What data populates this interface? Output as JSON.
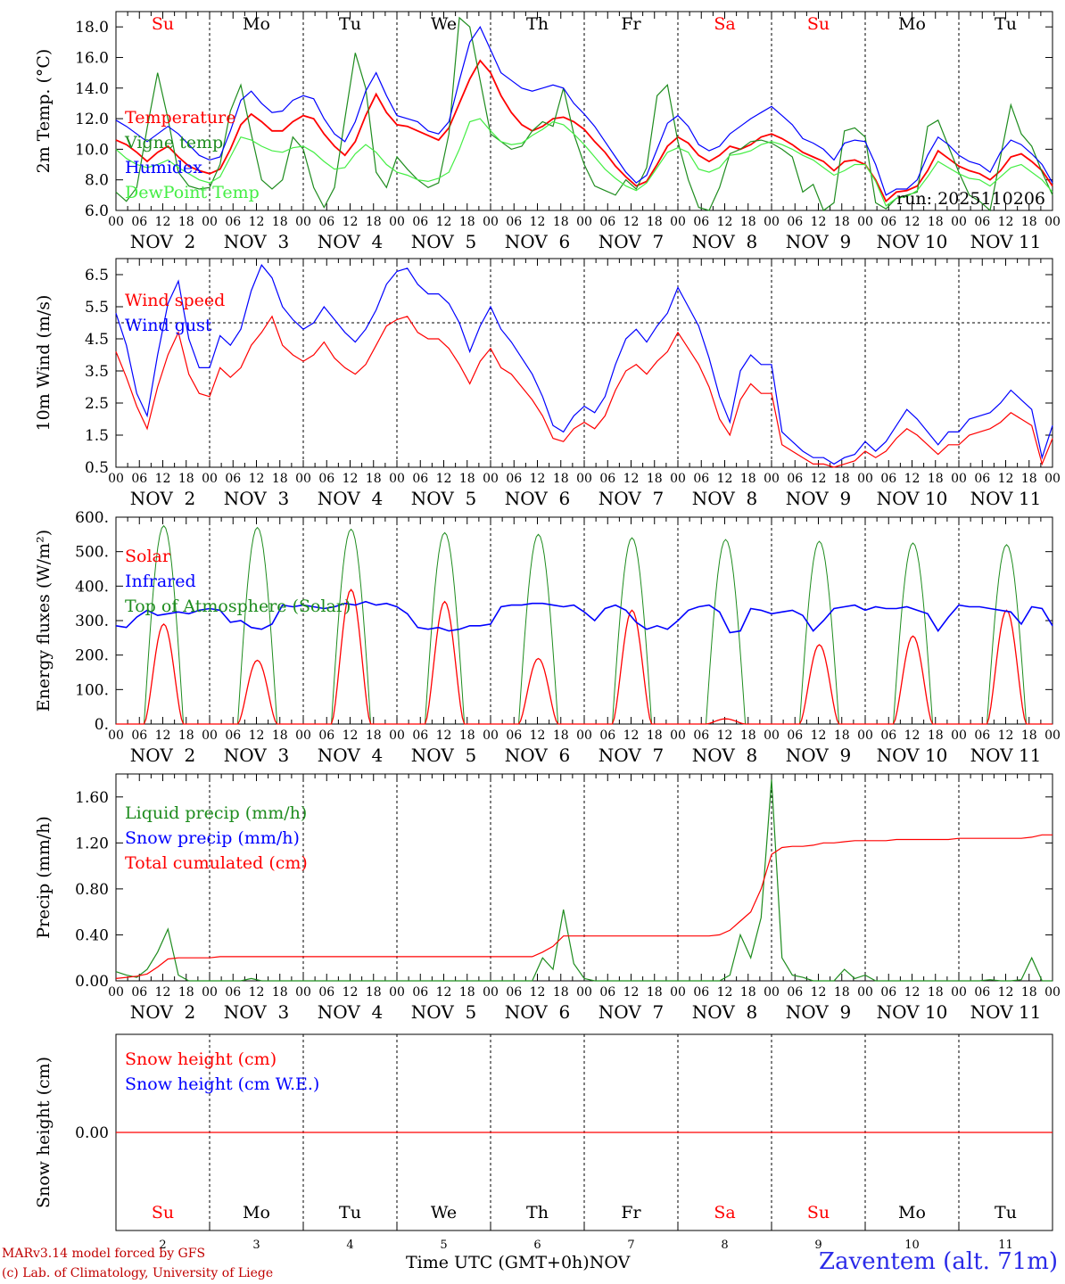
{
  "chart_data": [
    {
      "type": "line",
      "ylabel": "2m Temp. (°C)",
      "ylim": [
        6,
        19
      ],
      "yticks": [
        "6.0",
        "8.0",
        "10.0",
        "12.0",
        "14.0",
        "16.0",
        "18.0"
      ],
      "run_label": "run: 2025110206",
      "series": [
        {
          "name": "Temperature",
          "color": "#ff0000",
          "values": [
            10.6,
            10.3,
            9.8,
            9.2,
            9.8,
            10.2,
            9.5,
            8.9,
            8.6,
            8.4,
            8.7,
            10.0,
            11.6,
            12.3,
            11.8,
            11.2,
            11.2,
            11.8,
            12.2,
            12.0,
            11.0,
            10.2,
            9.6,
            10.5,
            12.2,
            13.6,
            12.4,
            11.6,
            11.5,
            11.2,
            10.9,
            10.6,
            11.4,
            13.0,
            14.6,
            15.8,
            15.0,
            13.5,
            12.4,
            11.6,
            11.2,
            11.5,
            12.0,
            12.1,
            11.8,
            11.3,
            10.5,
            9.8,
            8.9,
            8.2,
            7.6,
            7.9,
            9.0,
            10.2,
            10.8,
            10.4,
            9.6,
            9.2,
            9.6,
            10.2,
            10.0,
            10.3,
            10.8,
            11.0,
            10.7,
            10.3,
            9.8,
            9.5,
            9.2,
            8.6,
            9.2,
            9.3,
            9.0,
            8.0,
            6.6,
            7.2,
            7.3,
            7.6,
            8.6,
            9.9,
            9.4,
            8.9,
            8.6,
            8.4,
            8.0,
            8.6,
            9.5,
            9.7,
            9.2,
            8.6,
            7.6
          ]
        },
        {
          "name": "Vigne temp",
          "color": "#1e8c1e",
          "values": [
            7.2,
            6.6,
            7.5,
            11.4,
            15.0,
            12.0,
            8.5,
            7.6,
            7.4,
            7.5,
            9.0,
            12.5,
            14.2,
            11.0,
            8.0,
            7.4,
            8.0,
            10.8,
            10.0,
            7.5,
            6.2,
            7.5,
            12.0,
            16.3,
            14.0,
            8.5,
            7.5,
            9.5,
            8.7,
            8.0,
            7.5,
            7.8,
            11.0,
            18.6,
            18.0,
            14.5,
            11.0,
            10.5,
            10.0,
            10.2,
            11.2,
            11.8,
            11.5,
            14.0,
            11.0,
            9.0,
            7.6,
            7.3,
            7.0,
            8.0,
            7.4,
            8.8,
            13.5,
            14.2,
            10.5,
            8.0,
            6.2,
            6.0,
            7.5,
            9.7,
            10.0,
            10.5,
            10.6,
            10.4,
            10.0,
            9.5,
            7.2,
            7.7,
            6.0,
            6.5,
            11.2,
            11.4,
            10.8,
            6.5,
            6.1,
            6.8,
            7.0,
            7.2,
            11.5,
            11.9,
            10.2,
            8.5,
            7.0,
            6.6,
            6.0,
            9.5,
            12.9,
            11.0,
            10.2,
            8.5,
            7.0
          ]
        },
        {
          "name": "Humidex",
          "color": "#0000ff",
          "values": [
            11.9,
            11.5,
            11.0,
            10.5,
            11.0,
            11.5,
            11.0,
            10.3,
            9.6,
            9.3,
            9.5,
            11.2,
            13.2,
            13.8,
            13.0,
            12.4,
            12.5,
            13.2,
            13.5,
            13.3,
            12.0,
            11.0,
            10.5,
            11.8,
            13.8,
            15.0,
            13.5,
            12.2,
            12.0,
            11.8,
            11.2,
            11.0,
            11.8,
            14.5,
            17.0,
            18.0,
            16.5,
            15.0,
            14.5,
            14.0,
            13.8,
            14.0,
            14.2,
            14.0,
            13.0,
            12.3,
            11.5,
            10.5,
            9.5,
            8.5,
            7.8,
            8.3,
            10.0,
            11.7,
            12.2,
            11.5,
            10.3,
            9.9,
            10.2,
            11.0,
            11.5,
            12.0,
            12.4,
            12.8,
            12.2,
            11.6,
            10.7,
            10.4,
            10.0,
            9.3,
            10.4,
            10.6,
            10.5,
            9.0,
            7.0,
            7.4,
            7.4,
            8.0,
            9.6,
            10.8,
            10.3,
            9.6,
            9.2,
            9.0,
            8.5,
            9.8,
            10.6,
            10.3,
            9.7,
            9.0,
            7.8
          ]
        },
        {
          "name": "DewPoint Temp",
          "color": "#44ee44",
          "values": [
            10.0,
            9.4,
            9.0,
            8.8,
            9.0,
            9.3,
            8.8,
            8.4,
            8.0,
            7.8,
            8.2,
            9.5,
            10.8,
            10.6,
            10.2,
            9.9,
            9.8,
            10.1,
            10.2,
            9.8,
            9.2,
            8.7,
            8.8,
            9.7,
            10.3,
            9.8,
            9.0,
            8.5,
            8.3,
            8.0,
            7.9,
            8.1,
            8.5,
            10.0,
            11.8,
            12.0,
            11.2,
            10.5,
            10.3,
            10.4,
            10.9,
            11.3,
            11.8,
            11.6,
            11.0,
            10.3,
            9.5,
            8.7,
            8.1,
            7.6,
            7.3,
            7.8,
            8.8,
            9.8,
            10.1,
            9.8,
            8.7,
            8.5,
            8.8,
            9.6,
            9.7,
            9.9,
            10.3,
            10.5,
            10.3,
            10.0,
            9.6,
            9.3,
            8.8,
            8.3,
            8.6,
            9.0,
            9.0,
            7.9,
            6.3,
            6.8,
            6.9,
            7.3,
            8.2,
            9.2,
            8.8,
            8.4,
            8.1,
            8.0,
            7.6,
            8.2,
            8.8,
            9.0,
            8.5,
            8.0,
            7.2
          ]
        }
      ]
    },
    {
      "type": "line",
      "ylabel": "10m Wind (m/s)",
      "ylim": [
        0.5,
        7.0
      ],
      "yticks": [
        "0.5",
        "1.5",
        "2.5",
        "3.5",
        "4.5",
        "5.5",
        "6.5"
      ],
      "reference_line": 5.0,
      "series": [
        {
          "name": "Wind speed",
          "color": "#ff0000",
          "values": [
            4.1,
            3.3,
            2.4,
            1.7,
            3.0,
            4.0,
            4.7,
            3.4,
            2.8,
            2.7,
            3.6,
            3.3,
            3.6,
            4.3,
            4.7,
            5.2,
            4.3,
            4.0,
            3.8,
            4.0,
            4.4,
            3.9,
            3.6,
            3.4,
            3.7,
            4.3,
            4.9,
            5.1,
            5.2,
            4.7,
            4.5,
            4.5,
            4.2,
            3.7,
            3.1,
            3.8,
            4.2,
            3.6,
            3.4,
            3.0,
            2.6,
            2.1,
            1.4,
            1.3,
            1.7,
            1.9,
            1.7,
            2.1,
            2.9,
            3.5,
            3.7,
            3.4,
            3.8,
            4.1,
            4.7,
            4.2,
            3.7,
            3.0,
            2.0,
            1.5,
            2.6,
            3.1,
            2.8,
            2.8,
            1.2,
            1.0,
            0.8,
            0.6,
            0.6,
            0.5,
            0.6,
            0.7,
            1.0,
            0.8,
            1.0,
            1.4,
            1.7,
            1.5,
            1.2,
            0.9,
            1.2,
            1.2,
            1.5,
            1.6,
            1.7,
            1.9,
            2.2,
            2.0,
            1.8,
            0.6,
            1.4
          ]
        },
        {
          "name": "Wind gust",
          "color": "#0000ff",
          "values": [
            5.3,
            4.3,
            2.8,
            2.1,
            4.0,
            5.6,
            6.3,
            4.5,
            3.6,
            3.6,
            4.6,
            4.3,
            4.8,
            6.0,
            6.8,
            6.4,
            5.5,
            5.1,
            4.8,
            5.0,
            5.5,
            5.1,
            4.7,
            4.4,
            4.8,
            5.4,
            6.2,
            6.6,
            6.7,
            6.2,
            5.9,
            5.9,
            5.6,
            5.0,
            4.1,
            4.9,
            5.5,
            4.8,
            4.4,
            3.9,
            3.4,
            2.7,
            1.8,
            1.6,
            2.1,
            2.4,
            2.2,
            2.7,
            3.7,
            4.5,
            4.8,
            4.4,
            4.9,
            5.3,
            6.1,
            5.5,
            4.9,
            3.9,
            2.7,
            1.9,
            3.5,
            4.0,
            3.7,
            3.7,
            1.6,
            1.3,
            1.0,
            0.8,
            0.8,
            0.6,
            0.8,
            0.9,
            1.3,
            1.0,
            1.3,
            1.8,
            2.3,
            2.0,
            1.6,
            1.2,
            1.6,
            1.6,
            2.0,
            2.1,
            2.2,
            2.5,
            2.9,
            2.6,
            2.3,
            0.8,
            1.8
          ]
        }
      ]
    },
    {
      "type": "line",
      "ylabel": "Energy fluxes (W/m²)",
      "ylim": [
        0,
        600
      ],
      "yticks": [
        "0.",
        "100.",
        "200.",
        "300.",
        "400.",
        "500.",
        "600."
      ],
      "solar_peaks": [
        290,
        185,
        390,
        355,
        190,
        330,
        15,
        230,
        255,
        330
      ],
      "toa_peaks": [
        575,
        570,
        565,
        555,
        550,
        540,
        535,
        530,
        525,
        520
      ],
      "series": [
        {
          "name": "Solar",
          "color": "#ff0000"
        },
        {
          "name": "Infrared",
          "color": "#0000ff",
          "values": [
            285,
            280,
            310,
            330,
            315,
            320,
            325,
            320,
            330,
            335,
            330,
            295,
            300,
            280,
            275,
            290,
            345,
            340,
            345,
            340,
            335,
            340,
            350,
            345,
            355,
            345,
            350,
            340,
            320,
            280,
            275,
            280,
            270,
            275,
            285,
            285,
            290,
            340,
            345,
            345,
            350,
            350,
            345,
            340,
            345,
            325,
            300,
            335,
            345,
            330,
            295,
            275,
            285,
            275,
            300,
            330,
            340,
            345,
            325,
            265,
            270,
            335,
            330,
            320,
            325,
            330,
            315,
            270,
            300,
            335,
            340,
            345,
            330,
            340,
            335,
            335,
            340,
            330,
            320,
            270,
            310,
            345,
            340,
            340,
            335,
            330,
            325,
            290,
            340,
            335,
            285
          ]
        },
        {
          "name": "Top of Atmosphere (Solar)",
          "color": "#1e8c1e"
        }
      ]
    },
    {
      "type": "line",
      "ylabel": "Precip (mm/h)",
      "ylim": [
        0,
        1.8
      ],
      "yticks": [
        "0.00",
        "0.40",
        "0.80",
        "1.20",
        "1.60"
      ],
      "series": [
        {
          "name": "Liquid precip (mm/h)",
          "color": "#1e8c1e",
          "values": [
            0.08,
            0.05,
            0.03,
            0.1,
            0.25,
            0.45,
            0.05,
            0,
            0,
            0,
            0,
            0,
            0,
            0.02,
            0,
            0,
            0,
            0,
            0,
            0,
            0,
            0,
            0,
            0,
            0,
            0,
            0,
            0,
            0,
            0,
            0,
            0,
            0,
            0,
            0,
            0,
            0,
            0,
            0,
            0,
            0,
            0.2,
            0.1,
            0.62,
            0.15,
            0.02,
            0,
            0,
            0,
            0,
            0,
            0,
            0,
            0,
            0,
            0,
            0,
            0,
            0,
            0.05,
            0.4,
            0.2,
            0.55,
            1.75,
            0.2,
            0.05,
            0.03,
            0,
            0,
            0,
            0.1,
            0.02,
            0.05,
            0,
            0,
            0,
            0,
            0,
            0,
            0,
            0,
            0,
            0,
            0,
            0.01,
            0,
            0,
            0.01,
            0.2,
            0,
            0
          ]
        },
        {
          "name": "Snow precip (mm/h)",
          "color": "#0000ff",
          "values": []
        },
        {
          "name": "Total cumulated (cm)",
          "color": "#ff0000",
          "values": [
            0.02,
            0.03,
            0.04,
            0.06,
            0.12,
            0.19,
            0.2,
            0.2,
            0.2,
            0.2,
            0.21,
            0.21,
            0.21,
            0.21,
            0.21,
            0.21,
            0.21,
            0.21,
            0.21,
            0.21,
            0.21,
            0.21,
            0.21,
            0.21,
            0.21,
            0.21,
            0.21,
            0.21,
            0.21,
            0.21,
            0.21,
            0.21,
            0.21,
            0.21,
            0.21,
            0.21,
            0.21,
            0.21,
            0.21,
            0.21,
            0.21,
            0.25,
            0.3,
            0.39,
            0.39,
            0.39,
            0.39,
            0.39,
            0.39,
            0.39,
            0.39,
            0.39,
            0.39,
            0.39,
            0.39,
            0.39,
            0.39,
            0.39,
            0.4,
            0.44,
            0.52,
            0.6,
            0.8,
            1.1,
            1.16,
            1.17,
            1.17,
            1.18,
            1.2,
            1.2,
            1.21,
            1.22,
            1.22,
            1.22,
            1.22,
            1.23,
            1.23,
            1.23,
            1.23,
            1.23,
            1.23,
            1.24,
            1.24,
            1.24,
            1.24,
            1.24,
            1.24,
            1.24,
            1.25,
            1.27,
            1.27
          ]
        }
      ]
    },
    {
      "type": "line",
      "ylabel": "Snow height (cm)",
      "ylim": [
        -1,
        1
      ],
      "yticks": [
        "0.00"
      ],
      "series": [
        {
          "name": "Snow height (cm)",
          "color": "#ff0000",
          "values": [
            0,
            0
          ]
        },
        {
          "name": "Snow height (cm W.E.)",
          "color": "#0000ff",
          "values": []
        }
      ]
    }
  ],
  "x_axis": {
    "hour_ticks": [
      "00",
      "06",
      "12",
      "18"
    ],
    "dates": [
      "NOV  2",
      "NOV  3",
      "NOV  4",
      "NOV  5",
      "NOV  6",
      "NOV  7",
      "NOV  8",
      "NOV  9",
      "NOV 10",
      "NOV 11"
    ],
    "day_names": [
      "Su",
      "Mo",
      "Tu",
      "We",
      "Th",
      "Fr",
      "Sa",
      "Su",
      "Mo",
      "Tu"
    ],
    "weekend_color": "#ff0000",
    "day_numbers": [
      "2",
      "3",
      "4",
      "5",
      "6",
      "7",
      "8",
      "9",
      "10",
      "11"
    ],
    "month": "NOV",
    "title": "Time UTC (GMT+0h)"
  },
  "footer": {
    "credit_1": "MARv3.14 model forced by GFS",
    "credit_2": "(c) Lab. of Climatology, University of Liege",
    "station": "Zaventem (alt. 71m)"
  }
}
